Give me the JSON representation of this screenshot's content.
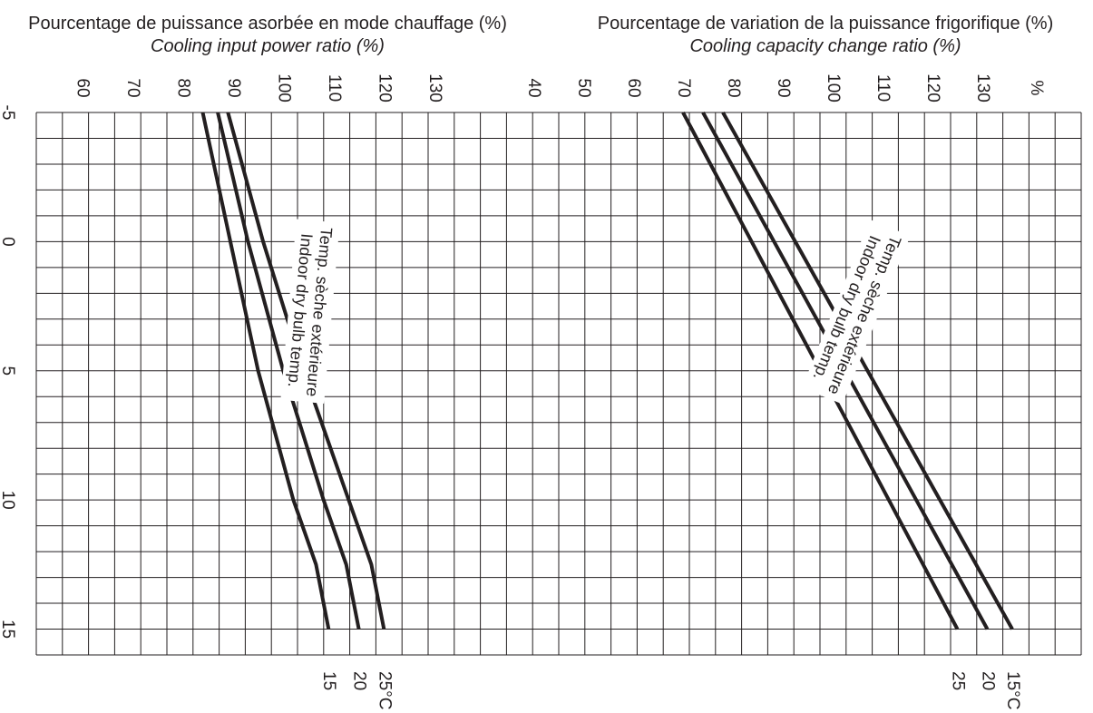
{
  "chart_data": [
    {
      "type": "line",
      "title": "Pourcentage de puissance asorbée en mode chauffage (%)",
      "subtitle": "Cooling input power ratio (%)",
      "xlabel": "",
      "ylabel": "",
      "x_ticks": [
        "-5",
        "0",
        "5",
        "10",
        "15"
      ],
      "y_ticks": [
        "60",
        "70",
        "80",
        "90",
        "100",
        "110",
        "120",
        "130"
      ],
      "xlim": [
        -5,
        16
      ],
      "ylim": [
        54,
        138
      ],
      "grid": true,
      "series_label": [
        "Temp. sèche extérieure",
        "Indoor dry bulb temp."
      ],
      "series": [
        {
          "name": "15",
          "x": [
            -5,
            0,
            5,
            10,
            12.5,
            15
          ],
          "y": [
            84,
            89.5,
            95,
            102,
            106.5,
            109
          ]
        },
        {
          "name": "20",
          "x": [
            -5,
            0,
            5,
            10,
            12.5,
            15
          ],
          "y": [
            87,
            93,
            100,
            108,
            112.5,
            115
          ]
        },
        {
          "name": "25°C",
          "x": [
            -5,
            0,
            5,
            10,
            12.5,
            15
          ],
          "y": [
            89,
            96,
            104,
            113,
            117.5,
            120
          ]
        }
      ]
    },
    {
      "type": "line",
      "title": "Pourcentage de variation de la puissance frigorifique (%)",
      "subtitle": "Cooling capacity change ratio (%)",
      "xlabel": "",
      "ylabel": "",
      "unit_label": "%",
      "x_ticks": [
        "-5",
        "0",
        "5",
        "10",
        "15"
      ],
      "y_ticks": [
        "40",
        "50",
        "60",
        "70",
        "80",
        "90",
        "100",
        "110",
        "120",
        "130"
      ],
      "xlim": [
        -5,
        16
      ],
      "ylim": [
        32,
        144
      ],
      "grid": true,
      "series_label": [
        "Temp. sèche extérieure",
        "Indoor dry bulb temp."
      ],
      "series": [
        {
          "name": "25",
          "x": [
            -5,
            15
          ],
          "y": [
            70,
            125
          ]
        },
        {
          "name": "20",
          "x": [
            -5,
            15
          ],
          "y": [
            74,
            131
          ]
        },
        {
          "name": "15°C",
          "x": [
            -5,
            15
          ],
          "y": [
            78,
            136
          ]
        }
      ]
    }
  ]
}
